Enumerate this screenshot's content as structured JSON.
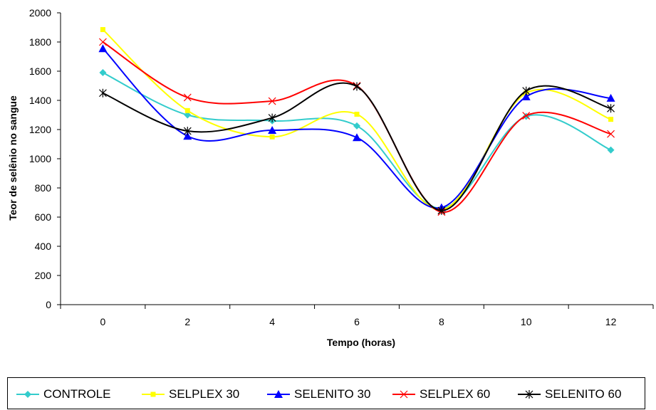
{
  "chart_data": {
    "type": "line",
    "title": "",
    "xlabel": "Tempo (horas)",
    "ylabel": "Teor de selênio no sangue",
    "categories": [
      "0",
      "2",
      "4",
      "6",
      "8",
      "10",
      "12"
    ],
    "ylim": [
      0,
      2000
    ],
    "yticks": [
      "0",
      "200",
      "400",
      "600",
      "800",
      "1000",
      "1200",
      "1400",
      "1600",
      "1800",
      "2000"
    ],
    "legend_position": "bottom",
    "grid": false,
    "smoothed": true,
    "series": [
      {
        "name": "CONTROLE",
        "color": "#33CCCC",
        "marker": "diamond",
        "values": [
          1590,
          1300,
          1260,
          1225,
          660,
          1290,
          1060
        ]
      },
      {
        "name": "SELPLEX 30",
        "color": "#FFFF00",
        "marker": "square",
        "values": [
          1885,
          1330,
          1150,
          1305,
          650,
          1450,
          1270
        ]
      },
      {
        "name": "SELENITO 30",
        "color": "#0000FF",
        "marker": "triangle",
        "values": [
          1755,
          1155,
          1195,
          1145,
          665,
          1425,
          1415
        ]
      },
      {
        "name": "SELPLEX 60",
        "color": "#FF0000",
        "marker": "x",
        "values": [
          1800,
          1420,
          1395,
          1500,
          635,
          1295,
          1170
        ]
      },
      {
        "name": "SELENITO 60",
        "color": "#000000",
        "marker": "star",
        "values": [
          1450,
          1190,
          1280,
          1495,
          645,
          1465,
          1345
        ]
      }
    ]
  }
}
